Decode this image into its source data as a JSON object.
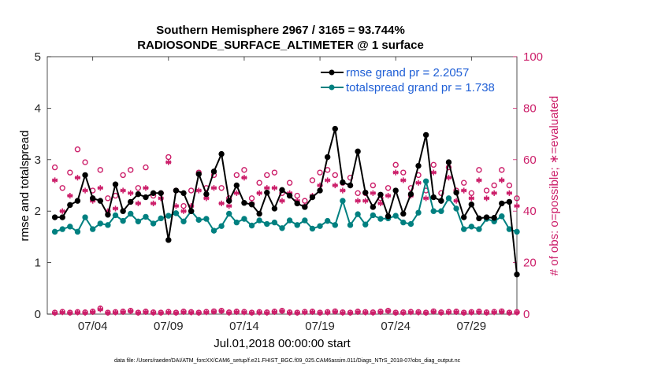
{
  "chart_data": {
    "type": "line",
    "title": "Southern Hemisphere 2967 / 3165 = 93.744%",
    "subtitle": "RADIOSONDE_SURFACE_ALTIMETER @ 1 surface",
    "xlabel": "Jul.01,2018 00:00:00 start",
    "ylabel": "rmse and totalspread",
    "y2label": "# of obs: o=possible; ∗=evaluated",
    "xlim": [
      0.5,
      31.5
    ],
    "ylim": [
      0,
      5
    ],
    "y2lim": [
      0,
      100
    ],
    "x_ticks": [
      3.5,
      8.5,
      13.5,
      18.5,
      23.5,
      28.5
    ],
    "x_tick_labels": [
      "07/04",
      "07/09",
      "07/14",
      "07/19",
      "07/24",
      "07/29"
    ],
    "y_ticks": [
      0,
      1,
      2,
      3,
      4,
      5
    ],
    "y_tick_labels": [
      "0",
      "1",
      "2",
      "3",
      "4",
      "5"
    ],
    "y2_ticks": [
      0,
      20,
      40,
      60,
      80,
      100
    ],
    "y2_tick_labels": [
      "0",
      "20",
      "40",
      "60",
      "80",
      "100"
    ],
    "footer": "data file: /Users/raeder/DAI/ATM_forcXX/CAM6_setup/f.e21.FHIST_BGC.f09_025.CAM6assim.011/Diags_NTrS_2018-07/obs_diag_output.nc",
    "legend": [
      {
        "name": "rmse grand pr = 2.2057",
        "color": "#000000"
      },
      {
        "name": "totalspread grand pr = 1.738",
        "color": "#008080"
      }
    ],
    "colors": {
      "rmse": "#000000",
      "spread": "#008080",
      "obs": "#cc1f6a"
    },
    "x": [
      1,
      1.5,
      2,
      2.5,
      3,
      3.5,
      4,
      4.5,
      5,
      5.5,
      6,
      6.5,
      7,
      7.5,
      8,
      8.5,
      9,
      9.5,
      10,
      10.5,
      11,
      11.5,
      12,
      12.5,
      13,
      13.5,
      14,
      14.5,
      15,
      15.5,
      16,
      16.5,
      17,
      17.5,
      18,
      18.5,
      19,
      19.5,
      20,
      20.5,
      21,
      21.5,
      22,
      22.5,
      23,
      23.5,
      24,
      24.5,
      25,
      25.5,
      26,
      26.5,
      27,
      27.5,
      28,
      28.5,
      29,
      29.5,
      30,
      30.5,
      31,
      31.5
    ],
    "series": [
      {
        "name": "rmse",
        "values": [
          1.88,
          1.88,
          2.12,
          2.2,
          2.7,
          2.25,
          2.2,
          1.93,
          2.52,
          2.0,
          2.18,
          2.33,
          2.27,
          2.35,
          2.35,
          1.44,
          2.4,
          2.35,
          2.0,
          2.72,
          2.33,
          2.77,
          3.11,
          2.2,
          2.5,
          2.16,
          2.13,
          1.95,
          2.36,
          2.05,
          2.41,
          2.3,
          2.15,
          2.08,
          2.27,
          2.4,
          3.05,
          3.6,
          2.56,
          2.5,
          3.16,
          2.36,
          2.08,
          2.32,
          1.9,
          2.4,
          1.95,
          2.33,
          2.88,
          3.48,
          2.27,
          2.2,
          2.95,
          2.36,
          1.88,
          2.13,
          1.86,
          1.88,
          1.87,
          2.15,
          2.18,
          0.77
        ]
      },
      {
        "name": "totalspread",
        "values": [
          1.6,
          1.65,
          1.7,
          1.6,
          1.88,
          1.65,
          1.76,
          1.73,
          1.92,
          1.81,
          1.95,
          1.8,
          1.89,
          1.76,
          1.86,
          1.91,
          1.96,
          1.8,
          2.0,
          1.83,
          1.85,
          1.62,
          1.71,
          1.95,
          1.78,
          1.85,
          1.72,
          1.82,
          1.75,
          1.78,
          1.67,
          1.82,
          1.73,
          1.82,
          1.66,
          1.71,
          1.81,
          1.73,
          2.2,
          1.73,
          1.94,
          1.74,
          1.92,
          1.85,
          1.86,
          1.91,
          1.78,
          1.75,
          1.97,
          2.58,
          2.0,
          2.0,
          2.25,
          2.05,
          1.65,
          1.7,
          1.65,
          1.85,
          1.8,
          1.9,
          1.65,
          1.6
        ]
      },
      {
        "name": "obs_possible",
        "values": [
          57,
          49,
          55,
          64,
          59,
          48,
          56,
          45,
          46,
          54,
          56,
          49,
          57,
          46,
          47,
          61,
          48,
          42,
          48,
          55,
          49,
          54,
          49,
          45,
          54,
          56,
          45,
          51,
          54,
          55,
          47,
          51,
          46,
          44,
          52,
          55,
          56,
          54,
          51,
          53,
          47,
          47,
          50,
          45,
          49,
          58,
          55,
          49,
          54,
          48,
          58,
          47,
          57,
          48,
          51,
          47,
          56,
          48,
          50,
          56,
          50,
          45
        ]
      },
      {
        "name": "obs_evaluated",
        "values": [
          52,
          40,
          46,
          53,
          48,
          44,
          49,
          40,
          41,
          48,
          47,
          43,
          49,
          43,
          45,
          59,
          42,
          40,
          42,
          48,
          45,
          49,
          43,
          42,
          47,
          53,
          43,
          47,
          49,
          49,
          44,
          47,
          44,
          42,
          46,
          50,
          52,
          50,
          48,
          50,
          44,
          44,
          47,
          43,
          46,
          55,
          52,
          46,
          51,
          45,
          55,
          44,
          53,
          44,
          48,
          45,
          52,
          45,
          47,
          52,
          47,
          42
        ]
      },
      {
        "name": "obs_possible_baseline",
        "values": [
          0.6,
          0.9,
          0.6,
          0.8,
          0.7,
          1.0,
          2.2,
          0.6,
          0.8,
          1.0,
          1.3,
          0.6,
          1.0,
          0.7,
          0.6,
          0.9,
          0.6,
          1.0,
          0.8,
          0.6,
          0.9,
          1.1,
          1.3,
          0.7,
          1.0,
          0.9,
          0.6,
          0.8,
          0.7,
          1.0,
          1.3,
          0.7,
          0.6,
          0.9,
          1.0,
          0.6,
          0.8,
          1.1,
          0.7,
          0.6,
          1.0,
          0.8,
          0.7,
          1.0,
          1.3,
          0.6,
          0.7,
          0.9,
          0.8,
          0.6,
          1.1,
          0.7,
          0.9,
          1.0,
          0.6,
          0.8,
          1.0,
          0.7,
          0.9,
          1.1,
          0.6,
          0.8
        ]
      },
      {
        "name": "obs_evaluated_baseline",
        "values": [
          0.4,
          0.7,
          0.5,
          0.6,
          0.5,
          0.8,
          1.8,
          0.5,
          0.6,
          0.8,
          1.1,
          0.5,
          0.8,
          0.5,
          0.5,
          0.7,
          0.5,
          0.8,
          0.6,
          0.5,
          0.7,
          0.9,
          1.1,
          0.5,
          0.8,
          0.7,
          0.5,
          0.6,
          0.5,
          0.8,
          1.1,
          0.5,
          0.5,
          0.7,
          0.8,
          0.5,
          0.6,
          0.9,
          0.5,
          0.5,
          0.8,
          0.6,
          0.5,
          0.8,
          1.1,
          0.5,
          0.5,
          0.7,
          0.6,
          0.5,
          0.9,
          0.5,
          0.7,
          0.8,
          0.5,
          0.6,
          0.8,
          0.5,
          0.7,
          0.9,
          0.5,
          0.6
        ]
      }
    ]
  }
}
